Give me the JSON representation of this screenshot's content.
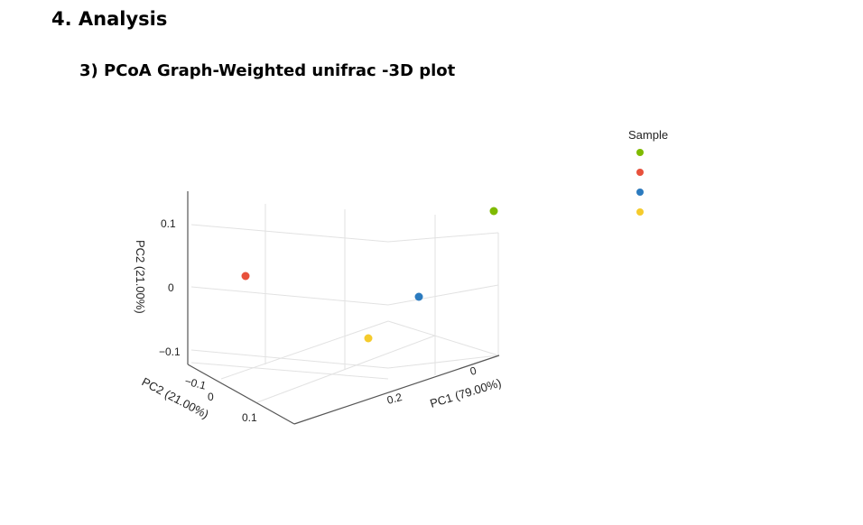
{
  "page": {
    "heading": "4. Analysis",
    "subheading": "3) PCoA Graph-Weighted unifrac -3D plot"
  },
  "chart_data": {
    "type": "scatter",
    "dimensions": 3,
    "title": "",
    "axes": {
      "x": {
        "label": "PC1 (79.00%)",
        "ticks": [
          "0",
          "0.2"
        ],
        "tick_values": [
          0,
          0.2
        ]
      },
      "y": {
        "label": "PC2 (21.00%)",
        "ticks": [
          "0.1",
          "0",
          "−0.1"
        ],
        "tick_values": [
          0.1,
          0,
          -0.1
        ]
      },
      "z": {
        "label": "PC2 (21.00%)",
        "ticks": [
          "−0.1",
          "0",
          "0.1"
        ],
        "tick_values": [
          -0.1,
          0,
          0.1
        ]
      }
    },
    "legend": {
      "title": "Sample",
      "position": "top-right"
    },
    "series": [
      {
        "color": "#7fba00"
      },
      {
        "color": "#e8513c"
      },
      {
        "color": "#2c7bbf"
      },
      {
        "color": "#f5cb2c"
      }
    ],
    "grid": true
  }
}
